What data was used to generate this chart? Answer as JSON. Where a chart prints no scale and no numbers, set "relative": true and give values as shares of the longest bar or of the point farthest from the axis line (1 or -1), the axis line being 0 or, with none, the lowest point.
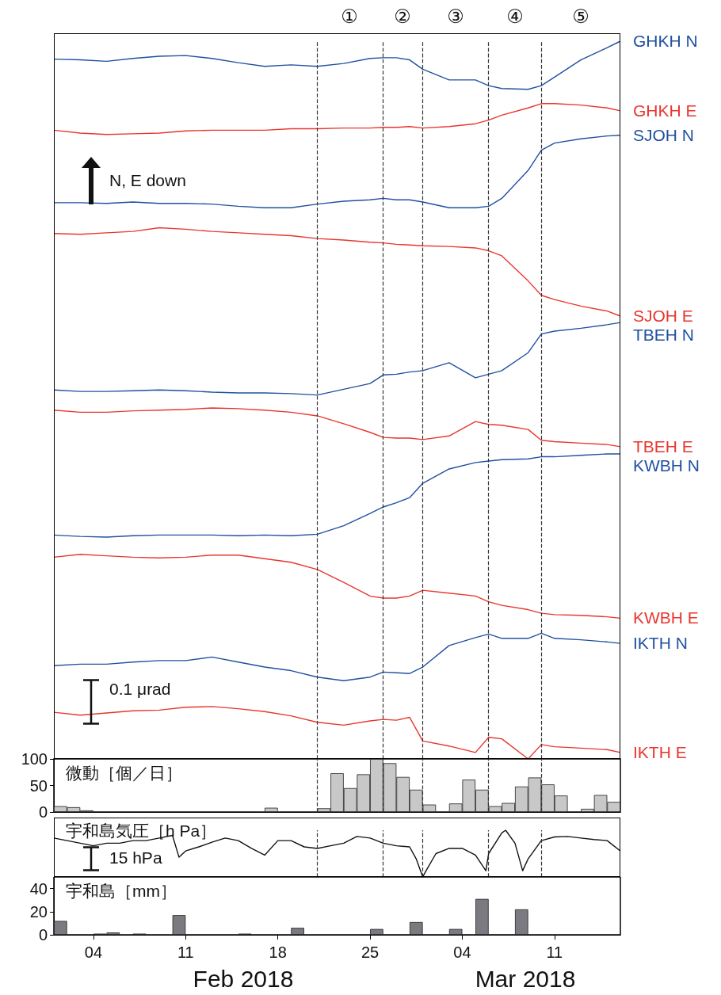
{
  "chart_data": [
    {
      "type": "line",
      "relative": true,
      "tick_labels": false,
      "xlim": [
        "2018-02-01",
        "2018-03-16"
      ],
      "x": [
        "2018-02-01",
        "2018-02-03",
        "2018-02-05",
        "2018-02-07",
        "2018-02-09",
        "2018-02-11",
        "2018-02-13",
        "2018-02-15",
        "2018-02-17",
        "2018-02-19",
        "2018-02-21",
        "2018-02-23",
        "2018-02-25",
        "2018-02-26",
        "2018-02-27",
        "2018-02-28",
        "2018-03-01",
        "2018-03-03",
        "2018-03-05",
        "2018-03-06",
        "2018-03-07",
        "2018-03-09",
        "2018-03-10",
        "2018-03-11",
        "2018-03-13",
        "2018-03-15",
        "2018-03-16"
      ],
      "series": [
        {
          "name": "GHKH N",
          "color": "#2050a0",
          "values": [
            0.975,
            0.974,
            0.972,
            0.976,
            0.979,
            0.98,
            0.976,
            0.97,
            0.965,
            0.967,
            0.965,
            0.969,
            0.976,
            0.977,
            0.977,
            0.974,
            0.961,
            0.946,
            0.946,
            0.938,
            0.934,
            0.933,
            0.938,
            0.95,
            0.974,
            0.991,
            1.0
          ]
        },
        {
          "name": "GHKH E",
          "color": "#e8362f",
          "values": [
            0.876,
            0.872,
            0.87,
            0.871,
            0.872,
            0.875,
            0.876,
            0.876,
            0.876,
            0.878,
            0.878,
            0.879,
            0.879,
            0.88,
            0.88,
            0.881,
            0.879,
            0.881,
            0.885,
            0.89,
            0.897,
            0.907,
            0.913,
            0.913,
            0.911,
            0.907,
            0.903
          ]
        },
        {
          "name": "SJOH N",
          "color": "#2050a0",
          "values": [
            0.775,
            0.775,
            0.774,
            0.776,
            0.774,
            0.774,
            0.773,
            0.77,
            0.768,
            0.768,
            0.773,
            0.777,
            0.779,
            0.781,
            0.779,
            0.779,
            0.776,
            0.768,
            0.768,
            0.77,
            0.781,
            0.82,
            0.848,
            0.858,
            0.864,
            0.868,
            0.869
          ]
        },
        {
          "name": "SJOH E",
          "color": "#e8362f",
          "values": [
            0.732,
            0.731,
            0.733,
            0.735,
            0.74,
            0.738,
            0.735,
            0.733,
            0.731,
            0.729,
            0.725,
            0.723,
            0.72,
            0.719,
            0.717,
            0.716,
            0.715,
            0.714,
            0.712,
            0.708,
            0.701,
            0.666,
            0.646,
            0.64,
            0.631,
            0.624,
            0.617
          ]
        },
        {
          "name": "TBEH N",
          "color": "#2050a0",
          "values": [
            0.514,
            0.512,
            0.512,
            0.513,
            0.514,
            0.513,
            0.511,
            0.51,
            0.51,
            0.509,
            0.507,
            0.515,
            0.523,
            0.535,
            0.536,
            0.539,
            0.541,
            0.552,
            0.531,
            0.536,
            0.541,
            0.566,
            0.592,
            0.596,
            0.6,
            0.605,
            0.608
          ]
        },
        {
          "name": "TBEH E",
          "color": "#e8362f",
          "values": [
            0.486,
            0.483,
            0.483,
            0.485,
            0.486,
            0.487,
            0.489,
            0.488,
            0.486,
            0.483,
            0.478,
            0.467,
            0.455,
            0.448,
            0.447,
            0.447,
            0.445,
            0.45,
            0.47,
            0.466,
            0.465,
            0.459,
            0.444,
            0.442,
            0.44,
            0.438,
            0.435
          ]
        },
        {
          "name": "KWBH N",
          "color": "#2050a0",
          "values": [
            0.312,
            0.31,
            0.309,
            0.311,
            0.312,
            0.312,
            0.312,
            0.311,
            0.312,
            0.311,
            0.313,
            0.325,
            0.342,
            0.351,
            0.357,
            0.364,
            0.384,
            0.404,
            0.413,
            0.415,
            0.417,
            0.418,
            0.421,
            0.421,
            0.423,
            0.425,
            0.425
          ]
        },
        {
          "name": "KWBH E",
          "color": "#e8362f",
          "values": [
            0.281,
            0.285,
            0.283,
            0.281,
            0.28,
            0.281,
            0.284,
            0.284,
            0.279,
            0.274,
            0.264,
            0.246,
            0.227,
            0.224,
            0.224,
            0.227,
            0.235,
            0.231,
            0.227,
            0.219,
            0.214,
            0.208,
            0.203,
            0.201,
            0.2,
            0.198,
            0.196
          ]
        },
        {
          "name": "IKTH N",
          "color": "#2050a0",
          "values": [
            0.13,
            0.132,
            0.132,
            0.135,
            0.137,
            0.137,
            0.142,
            0.135,
            0.128,
            0.123,
            0.114,
            0.109,
            0.114,
            0.121,
            0.12,
            0.119,
            0.128,
            0.158,
            0.169,
            0.174,
            0.168,
            0.168,
            0.175,
            0.168,
            0.166,
            0.163,
            0.161
          ]
        },
        {
          "name": "IKTH E",
          "color": "#e8362f",
          "values": [
            0.065,
            0.061,
            0.064,
            0.067,
            0.068,
            0.072,
            0.073,
            0.07,
            0.066,
            0.06,
            0.051,
            0.047,
            0.053,
            0.055,
            0.054,
            0.058,
            0.025,
            0.018,
            0.009,
            0.03,
            0.028,
            0.0,
            0.02,
            0.017,
            0.015,
            0.013,
            0.009
          ]
        }
      ],
      "ref_lines": [
        {
          "axis": "x",
          "value": "2018-02-21",
          "line_style": "dashed",
          "color": "#333333"
        },
        {
          "axis": "x",
          "value": "2018-02-26",
          "line_style": "dashed",
          "color": "#333333"
        },
        {
          "axis": "x",
          "value": "2018-03-01",
          "line_style": "dashed",
          "color": "#333333"
        },
        {
          "axis": "x",
          "value": "2018-03-06",
          "line_style": "dashed",
          "color": "#333333"
        },
        {
          "axis": "x",
          "value": "2018-03-10",
          "line_style": "dashed",
          "color": "#333333"
        }
      ],
      "annotations": [
        "N, E down",
        "0.1 μrad",
        "①",
        "②",
        "③",
        "④",
        "⑤"
      ]
    },
    {
      "type": "bar",
      "title": "微動［個／日］",
      "tick_labels": "y",
      "xlim": [
        "2018-02-01",
        "2018-03-16"
      ],
      "ylim": [
        0,
        100
      ],
      "yticks": [
        0,
        50,
        100
      ],
      "color": "#c8c8c8",
      "x": [
        "2018-02-01T12:00",
        "2018-02-02T12:00",
        "2018-02-03T12:00",
        "2018-02-04T12:00",
        "2018-02-05T12:00",
        "2018-02-06T12:00",
        "2018-02-07T12:00",
        "2018-02-08T12:00",
        "2018-02-09T12:00",
        "2018-02-10T12:00",
        "2018-02-11T12:00",
        "2018-02-12T12:00",
        "2018-02-13T12:00",
        "2018-02-14T12:00",
        "2018-02-15T12:00",
        "2018-02-16T12:00",
        "2018-02-17T12:00",
        "2018-02-18T12:00",
        "2018-02-19T12:00",
        "2018-02-20T12:00",
        "2018-02-21T12:00",
        "2018-02-22T12:00",
        "2018-02-23T12:00",
        "2018-02-24T12:00",
        "2018-02-25T12:00",
        "2018-02-26T12:00",
        "2018-02-27T12:00",
        "2018-02-28T12:00",
        "2018-03-01T12:00",
        "2018-03-02T12:00",
        "2018-03-03T12:00",
        "2018-03-04T12:00",
        "2018-03-05T12:00",
        "2018-03-06T12:00",
        "2018-03-07T12:00",
        "2018-03-08T12:00",
        "2018-03-09T12:00",
        "2018-03-10T12:00",
        "2018-03-11T12:00",
        "2018-03-12T12:00",
        "2018-03-13T12:00",
        "2018-03-14T12:00",
        "2018-03-15T12:00"
      ],
      "values": [
        11,
        9,
        3,
        0,
        0,
        0,
        0,
        0,
        0,
        0,
        0,
        0,
        0,
        0,
        0,
        0,
        8,
        0,
        0,
        0,
        7,
        73,
        45,
        71,
        100,
        92,
        66,
        42,
        14,
        0,
        16,
        61,
        42,
        11,
        17,
        48,
        65,
        52,
        31,
        0,
        6,
        32,
        19
      ],
      "ref_lines": [
        {
          "axis": "x",
          "value": "2018-02-21",
          "line_style": "dashed",
          "color": "#333333"
        },
        {
          "axis": "x",
          "value": "2018-02-26",
          "line_style": "dashed",
          "color": "#333333"
        },
        {
          "axis": "x",
          "value": "2018-03-01",
          "line_style": "dashed",
          "color": "#333333"
        },
        {
          "axis": "x",
          "value": "2018-03-06",
          "line_style": "dashed",
          "color": "#333333"
        },
        {
          "axis": "x",
          "value": "2018-03-10",
          "line_style": "dashed",
          "color": "#333333"
        }
      ]
    },
    {
      "type": "line",
      "title": "宇和島気圧［h Pa］",
      "relative": true,
      "tick_labels": false,
      "xlim": [
        "2018-02-01",
        "2018-03-16"
      ],
      "color": "#111111",
      "x": [
        "2018-02-01",
        "2018-02-02",
        "2018-02-03",
        "2018-02-04",
        "2018-02-05",
        "2018-02-06",
        "2018-02-07",
        "2018-02-08",
        "2018-02-09",
        "2018-02-10",
        "2018-02-10T12:00",
        "2018-02-11",
        "2018-02-12",
        "2018-02-13",
        "2018-02-14",
        "2018-02-15",
        "2018-02-16",
        "2018-02-17",
        "2018-02-18",
        "2018-02-19",
        "2018-02-20",
        "2018-02-21",
        "2018-02-22",
        "2018-02-23",
        "2018-02-24",
        "2018-02-25",
        "2018-02-26",
        "2018-02-27",
        "2018-02-28",
        "2018-02-28T12:00",
        "2018-03-01",
        "2018-03-01T05:00",
        "2018-03-02",
        "2018-03-03",
        "2018-03-04",
        "2018-03-05",
        "2018-03-05T19:00",
        "2018-03-06",
        "2018-03-07",
        "2018-03-07T07:00",
        "2018-03-08",
        "2018-03-08T14:00",
        "2018-03-09",
        "2018-03-10",
        "2018-03-11",
        "2018-03-12",
        "2018-03-13",
        "2018-03-14",
        "2018-03-15",
        "2018-03-16"
      ],
      "values": [
        0.833,
        0.778,
        0.722,
        0.667,
        0.722,
        0.722,
        0.778,
        0.778,
        0.833,
        0.889,
        0.422,
        0.556,
        0.644,
        0.744,
        0.833,
        0.778,
        0.611,
        0.467,
        0.778,
        0.778,
        0.644,
        0.611,
        0.667,
        0.722,
        0.867,
        0.833,
        0.722,
        0.667,
        0.644,
        0.389,
        0,
        0.111,
        0.5,
        0.611,
        0.611,
        0.467,
        0.133,
        0.5,
        0.944,
        1,
        0.722,
        0.133,
        0.389,
        0.778,
        0.856,
        0.867,
        0.833,
        0.8,
        0.778,
        0.556
      ],
      "ref_lines": [
        {
          "axis": "x",
          "value": "2018-02-21",
          "line_style": "dashed",
          "color": "#333333"
        },
        {
          "axis": "x",
          "value": "2018-02-26",
          "line_style": "dashed",
          "color": "#333333"
        },
        {
          "axis": "x",
          "value": "2018-03-01",
          "line_style": "dashed",
          "color": "#333333"
        },
        {
          "axis": "x",
          "value": "2018-03-06",
          "line_style": "dashed",
          "color": "#333333"
        },
        {
          "axis": "x",
          "value": "2018-03-10",
          "line_style": "dashed",
          "color": "#333333"
        }
      ],
      "annotations": [
        "15 hPa"
      ]
    },
    {
      "type": "bar",
      "title": "宇和島［mm］",
      "xlim": [
        "2018-02-01",
        "2018-03-16"
      ],
      "ylim": [
        0,
        50
      ],
      "yticks": [
        0,
        20,
        40
      ],
      "color": "#7a7a80",
      "xticks": [
        {
          "value": "2018-02-04",
          "label": "04"
        },
        {
          "value": "2018-02-11",
          "label": "11"
        },
        {
          "value": "2018-02-18",
          "label": "18"
        },
        {
          "value": "2018-02-25",
          "label": "25"
        },
        {
          "value": "2018-03-04",
          "label": "04"
        },
        {
          "value": "2018-03-11",
          "label": "11"
        }
      ],
      "x": [
        "2018-02-01T12:00",
        "2018-02-02T12:00",
        "2018-02-03T12:00",
        "2018-02-04T12:00",
        "2018-02-05T12:00",
        "2018-02-06T12:00",
        "2018-02-07T12:00",
        "2018-02-08T12:00",
        "2018-02-09T12:00",
        "2018-02-10T12:00",
        "2018-02-11T12:00",
        "2018-02-12T12:00",
        "2018-02-13T12:00",
        "2018-02-14T12:00",
        "2018-02-15T12:00",
        "2018-02-16T12:00",
        "2018-02-17T12:00",
        "2018-02-18T12:00",
        "2018-02-19T12:00",
        "2018-02-20T12:00",
        "2018-02-21T12:00",
        "2018-02-22T12:00",
        "2018-02-23T12:00",
        "2018-02-24T12:00",
        "2018-02-25T12:00",
        "2018-02-26T12:00",
        "2018-02-27T12:00",
        "2018-02-28T12:00",
        "2018-03-01T12:00",
        "2018-03-02T12:00",
        "2018-03-03T12:00",
        "2018-03-04T12:00",
        "2018-03-05T12:00",
        "2018-03-06T12:00",
        "2018-03-07T12:00",
        "2018-03-08T12:00",
        "2018-03-09T12:00",
        "2018-03-10T12:00",
        "2018-03-11T12:00",
        "2018-03-12T12:00",
        "2018-03-13T12:00",
        "2018-03-14T12:00",
        "2018-03-15T12:00"
      ],
      "values": [
        12,
        0,
        0,
        1,
        2,
        0,
        1,
        0,
        0,
        17,
        0,
        0,
        0,
        0,
        1,
        0,
        0,
        0,
        6,
        0,
        0,
        0,
        0,
        0,
        5,
        0,
        0,
        11,
        0,
        0,
        5,
        0,
        31,
        0,
        0,
        22,
        0,
        0,
        0,
        0,
        0,
        0,
        0
      ],
      "annotations": [
        "Feb 2018",
        "Mar 2018"
      ]
    }
  ]
}
